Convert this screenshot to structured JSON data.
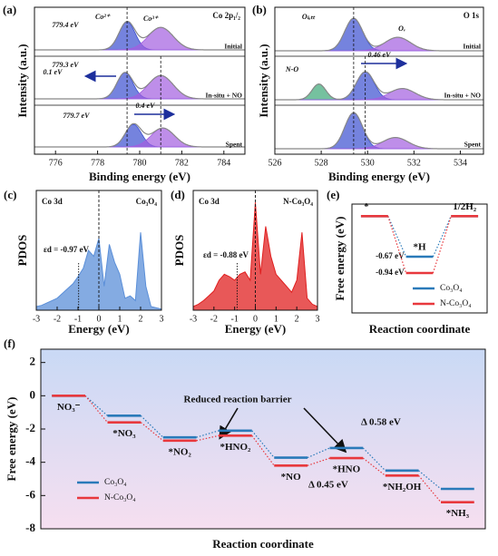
{
  "chart_data": [
    {
      "type": "spectrum",
      "panel_label": "(a)",
      "title": "Co 2p₁/₂",
      "x_label": "Binding energy (eV)",
      "y_label": "Intensity (a.u.)",
      "xlim": [
        775,
        785
      ],
      "xticks": [
        776,
        778,
        780,
        782,
        784
      ],
      "ylim": [
        0,
        1
      ],
      "reference_lines": [
        779.4,
        781.0
      ],
      "spectra": [
        {
          "name": "Initial",
          "background": 0.08,
          "peaks": [
            {
              "center": 779.4,
              "height": 0.62,
              "width": 0.9,
              "color": "#3b4fd0"
            },
            {
              "center": 781.0,
              "height": 0.5,
              "width": 1.4,
              "color": "#a35ee0"
            }
          ]
        },
        {
          "name": "In-situ + NO",
          "background": 0.08,
          "peaks": [
            {
              "center": 779.3,
              "height": 0.58,
              "width": 0.9,
              "color": "#3b4fd0"
            },
            {
              "center": 781.0,
              "height": 0.52,
              "width": 1.4,
              "color": "#a35ee0"
            }
          ]
        },
        {
          "name": "Spent",
          "background": 0.1,
          "peaks": [
            {
              "center": 779.7,
              "height": 0.5,
              "width": 0.9,
              "color": "#3b4fd0"
            },
            {
              "center": 781.1,
              "height": 0.42,
              "width": 1.3,
              "color": "#a35ee0"
            }
          ]
        }
      ],
      "annotations": [
        "Co²⁺",
        "Co³⁺",
        "779.4 eV",
        "779.3 eV",
        "0.1 eV",
        "779.7 eV",
        "0.4 eV"
      ]
    },
    {
      "type": "spectrum",
      "panel_label": "(b)",
      "title": "O 1s",
      "x_label": "Binding energy (eV)",
      "y_label": "Intensity (a.u.)",
      "xlim": [
        526,
        535
      ],
      "xticks": [
        526,
        528,
        530,
        532,
        534
      ],
      "ylim": [
        0,
        1
      ],
      "reference_lines": [
        529.4,
        529.9
      ],
      "spectra": [
        {
          "name": "Initial",
          "background": 0.06,
          "peaks": [
            {
              "center": 529.4,
              "height": 0.72,
              "width": 0.9,
              "color": "#3b4fd0"
            },
            {
              "center": 531.3,
              "height": 0.3,
              "width": 1.3,
              "color": "#a35ee0"
            }
          ]
        },
        {
          "name": "In-situ + NO",
          "background": 0.06,
          "peaks": [
            {
              "center": 527.9,
              "height": 0.35,
              "width": 0.7,
              "color": "#3aa776"
            },
            {
              "center": 529.9,
              "height": 0.62,
              "width": 0.9,
              "color": "#3b4fd0"
            },
            {
              "center": 531.5,
              "height": 0.25,
              "width": 1.3,
              "color": "#a35ee0"
            }
          ]
        },
        {
          "name": "Spent",
          "background": 0.06,
          "peaks": [
            {
              "center": 529.4,
              "height": 0.8,
              "width": 0.9,
              "color": "#3b4fd0"
            },
            {
              "center": 531.2,
              "height": 0.25,
              "width": 1.3,
              "color": "#a35ee0"
            }
          ]
        }
      ],
      "annotations": [
        "Oₗₐₜₜ",
        "Oᵥ",
        "N-O",
        "0.46 eV"
      ]
    },
    {
      "type": "area",
      "panel_label": "(c)",
      "title": "Co 3d",
      "subtitle": "Co₃O₄",
      "x_label": "Energy (eV)",
      "y_label": "PDOS",
      "xlim": [
        -3,
        3
      ],
      "xticks": [
        -3,
        -2,
        -1,
        0,
        1,
        2,
        3
      ],
      "ylim": [
        0,
        10
      ],
      "color": "#5b8fd8",
      "d_band_center": -0.97,
      "d_band_label": "εd = -0.97 eV",
      "x": [
        -3,
        -2.75,
        -2.5,
        -2.25,
        -2,
        -1.75,
        -1.5,
        -1.25,
        -1,
        -0.75,
        -0.5,
        -0.25,
        0,
        0.25,
        0.5,
        0.75,
        1,
        1.25,
        1.5,
        1.75,
        2,
        2.25,
        2.5,
        2.75,
        3
      ],
      "values": [
        0.3,
        0.4,
        0.6,
        0.8,
        1.0,
        1.4,
        1.8,
        2.2,
        2.8,
        3.5,
        5.0,
        4.5,
        6.0,
        2.0,
        5.5,
        4.0,
        3.0,
        1.0,
        1.2,
        0.8,
        6.5,
        2.0,
        0.3,
        0.2,
        0.1
      ]
    },
    {
      "type": "area",
      "panel_label": "(d)",
      "title": "Co 3d",
      "subtitle": "N-Co₃O₄",
      "x_label": "Energy (eV)",
      "y_label": "PDOS",
      "xlim": [
        -3,
        3
      ],
      "xticks": [
        -3,
        -2,
        -1,
        0,
        1,
        2,
        3
      ],
      "ylim": [
        0,
        10
      ],
      "color": "#e02020",
      "d_band_center": -0.88,
      "d_band_label": "εd = -0.88 eV",
      "x": [
        -3,
        -2.75,
        -2.5,
        -2.25,
        -2,
        -1.75,
        -1.5,
        -1.25,
        -1,
        -0.75,
        -0.5,
        -0.25,
        0,
        0.25,
        0.5,
        0.75,
        1,
        1.25,
        1.5,
        1.75,
        2,
        2.25,
        2.5,
        2.75,
        3
      ],
      "values": [
        0.3,
        0.5,
        0.8,
        1.2,
        1.6,
        2.5,
        3.0,
        2.8,
        2.5,
        3.0,
        3.2,
        2.5,
        9.0,
        3.0,
        7.0,
        4.5,
        3.0,
        2.5,
        2.0,
        1.5,
        2.5,
        6.5,
        1.0,
        0.5,
        0.3
      ]
    },
    {
      "type": "step",
      "panel_label": "(e)",
      "x_label": "Reaction coordinate",
      "y_label": "Free energy (eV)",
      "categories": [
        "*",
        "*H",
        "1/2H₂"
      ],
      "ylim": [
        -1.6,
        0.2
      ],
      "series": [
        {
          "name": "Co₃O₄",
          "color": "#2a7ab9",
          "values": [
            0,
            -0.67,
            0
          ],
          "value_labels": [
            null,
            "-0.67 eV",
            null
          ]
        },
        {
          "name": "N-Co₃O₄",
          "color": "#e8383d",
          "values": [
            0,
            -0.94,
            0
          ],
          "value_labels": [
            null,
            "-0.94 eV",
            null
          ]
        }
      ]
    },
    {
      "type": "step",
      "panel_label": "(f)",
      "x_label": "Reaction coordinate",
      "y_label": "Free energy (eV)",
      "categories": [
        "NO₃⁻",
        "*NO₃",
        "*NO₂",
        "*HNO₂",
        "*NO",
        "*HNO",
        "*NH₂OH",
        "*NH₃"
      ],
      "ylim": [
        -8,
        2.8
      ],
      "yticks": [
        2,
        0,
        -2,
        -4,
        -6,
        -8
      ],
      "series": [
        {
          "name": "Co₃O₄",
          "color": "#2a7ab9",
          "values": [
            0,
            -1.2,
            -2.5,
            -2.1,
            -3.72,
            -3.14,
            -4.5,
            -5.6
          ]
        },
        {
          "name": "N-Co₃O₄",
          "color": "#e8383d",
          "values": [
            0,
            -1.6,
            -2.7,
            -2.4,
            -4.2,
            -3.75,
            -4.8,
            -6.4
          ]
        }
      ],
      "annotations": [
        "Reduced reaction barrier",
        "Δ 0.58 eV",
        "Δ 0.45 eV"
      ]
    }
  ]
}
